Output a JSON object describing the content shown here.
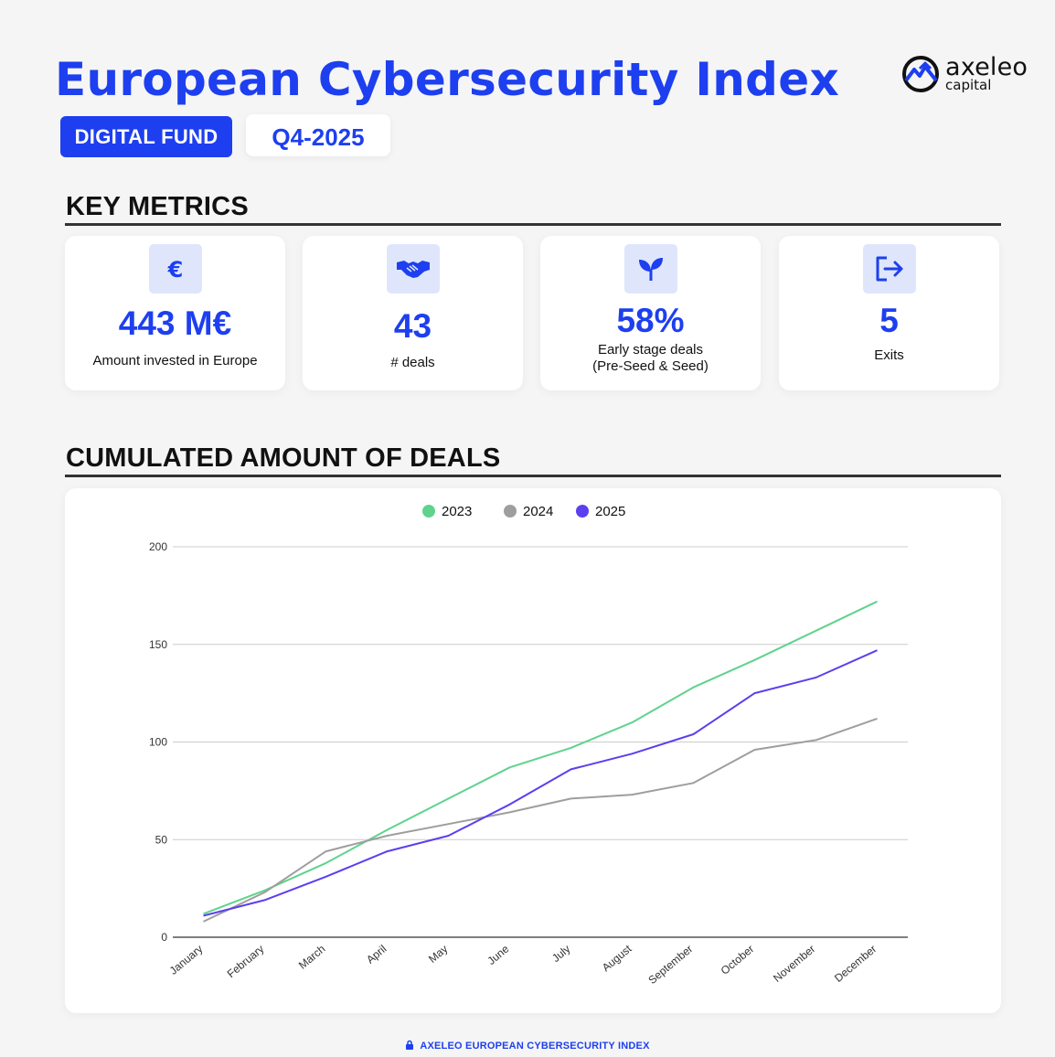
{
  "header": {
    "title": "European Cybersecurity Index",
    "fund_badge": "DIGITAL FUND",
    "quarter_badge": "Q4-2025"
  },
  "logo": {
    "name": "axeleo",
    "sub": "capital"
  },
  "sections": {
    "key_metrics": "KEY METRICS",
    "cumulated": "CUMULATED AMOUNT OF DEALS"
  },
  "metrics": [
    {
      "icon": "euro-icon",
      "value": "443 M€",
      "label": "Amount invested in Europe"
    },
    {
      "icon": "handshake-icon",
      "value": "43",
      "label": "# deals"
    },
    {
      "icon": "sprout-icon",
      "value": "58%",
      "label": "Early stage deals\n(Pre-Seed & Seed)"
    },
    {
      "icon": "exit-icon",
      "value": "5",
      "label": "Exits"
    }
  ],
  "colors": {
    "accent": "#1d3ff0",
    "s2023": "#5fd38d",
    "s2024": "#9e9e9e",
    "s2025": "#5b3ff0"
  },
  "chart_data": {
    "type": "line",
    "title": "CUMULATED AMOUNT OF DEALS",
    "categories": [
      "January",
      "February",
      "March",
      "April",
      "May",
      "June",
      "July",
      "August",
      "September",
      "October",
      "November",
      "December"
    ],
    "series": [
      {
        "name": "2023",
        "color": "#5fd38d",
        "values": [
          12,
          24,
          38,
          55,
          71,
          87,
          97,
          110,
          128,
          142,
          157,
          172
        ]
      },
      {
        "name": "2024",
        "color": "#9e9e9e",
        "values": [
          8,
          23,
          44,
          52,
          58,
          64,
          71,
          73,
          79,
          96,
          101,
          112
        ]
      },
      {
        "name": "2025",
        "color": "#5b3ff0",
        "values": [
          11,
          19,
          31,
          44,
          52,
          68,
          86,
          94,
          104,
          125,
          133,
          147
        ]
      }
    ],
    "yticks": [
      0,
      50,
      100,
      150,
      200
    ],
    "ylim": [
      0,
      200
    ],
    "legend_position": "top-center",
    "grid": true
  },
  "footer": {
    "text": "AXELEO EUROPEAN CYBERSECURITY INDEX"
  }
}
